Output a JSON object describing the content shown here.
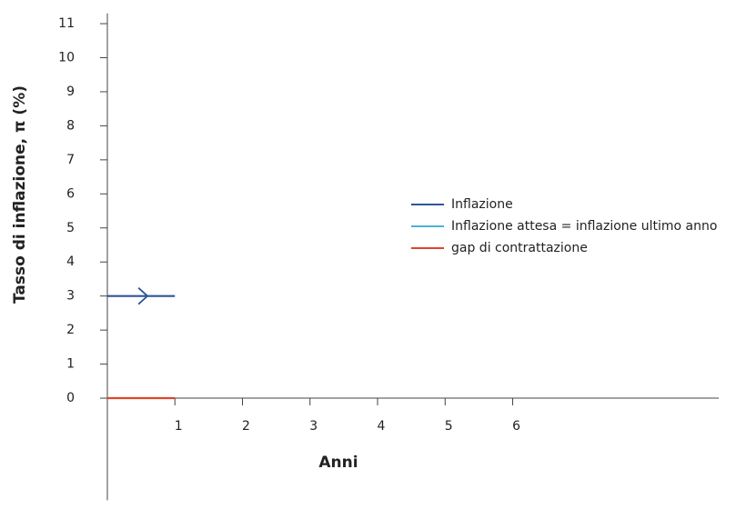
{
  "chart_data": {
    "type": "line",
    "y_label": "Tasso di inflazione, π (%)",
    "x_label": "Anni",
    "xlim": [
      0,
      9.05
    ],
    "xticks": [
      1,
      2,
      3,
      4,
      5,
      6
    ],
    "ylim": [
      -3,
      11.3
    ],
    "yticks": [
      0,
      1,
      2,
      3,
      4,
      5,
      6,
      7,
      8,
      9,
      10,
      11
    ],
    "legend": "right",
    "series": [
      {
        "name": "Inflazione",
        "color": "#2f5597",
        "x": [
          0,
          1
        ],
        "values": [
          3,
          3
        ],
        "arrow": true
      },
      {
        "name": "Inflazione attesa = inflazione ultimo anno",
        "color": "#4bb3d4",
        "x": [],
        "values": []
      },
      {
        "name": "gap di contrattazione",
        "color": "#e0452b",
        "x": [
          0,
          1
        ],
        "values": [
          0,
          0
        ]
      }
    ]
  }
}
